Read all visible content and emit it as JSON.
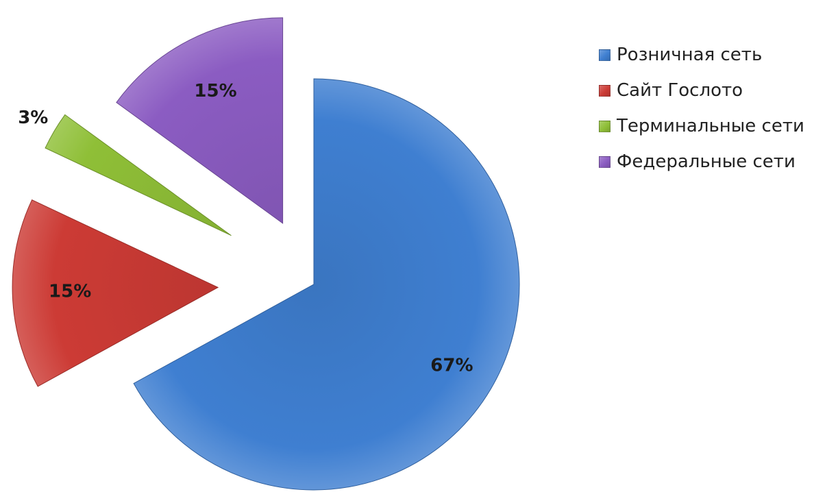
{
  "chart_data": {
    "type": "pie",
    "exploded": true,
    "title": "",
    "start_angle_deg": 0,
    "direction": "clockwise",
    "legend_position": "right",
    "categories": [
      "Розничная сеть",
      "Сайт Гослото",
      "Терминальные сети",
      "Федеральные сети"
    ],
    "values": [
      67,
      15,
      3,
      15
    ],
    "data_labels": [
      "67%",
      "15%",
      "3%",
      "15%"
    ],
    "colors": [
      "#3f7fd1",
      "#cc3b35",
      "#8fbf37",
      "#8b5cc2"
    ]
  }
}
